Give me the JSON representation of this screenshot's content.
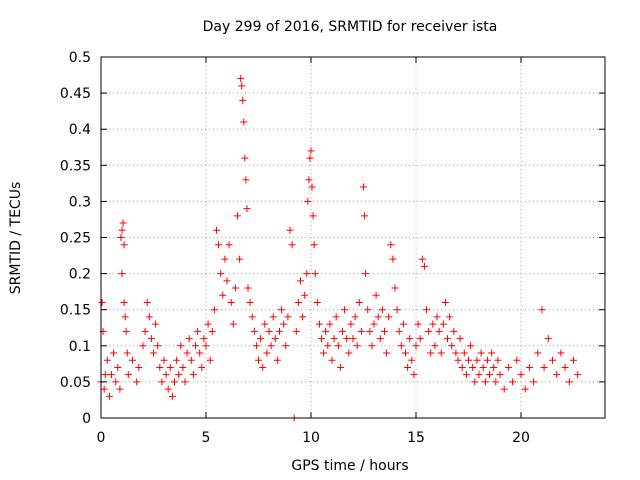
{
  "chart_data": {
    "type": "scatter",
    "title": "Day 299 of 2016, SRMTID for receiver ista",
    "xlabel": "GPS time / hours",
    "ylabel": "SRMTID / TECUs",
    "xlim": [
      0,
      24
    ],
    "ylim": [
      0,
      0.5
    ],
    "grid": true,
    "marker": "+",
    "series_color": "#ff0000",
    "x_ticks": [
      0,
      5,
      10,
      15,
      20
    ],
    "x_tick_labels": [
      "0",
      "5",
      "10",
      "15",
      "20"
    ],
    "y_ticks": [
      0,
      0.05,
      0.1,
      0.15,
      0.2,
      0.25,
      0.3,
      0.35,
      0.4,
      0.45,
      0.5
    ],
    "y_tick_labels": [
      "0",
      "0.05",
      "0.1",
      "0.15",
      "0.2",
      "0.25",
      "0.3",
      "0.35",
      "0.4",
      "0.45",
      "0.5"
    ],
    "series": [
      {
        "name": "SRMTID",
        "points": [
          [
            0.0,
            0.05
          ],
          [
            0.05,
            0.16
          ],
          [
            0.1,
            0.12
          ],
          [
            0.15,
            0.04
          ],
          [
            0.2,
            0.06
          ],
          [
            0.3,
            0.08
          ],
          [
            0.4,
            0.03
          ],
          [
            0.5,
            0.06
          ],
          [
            0.6,
            0.09
          ],
          [
            0.7,
            0.05
          ],
          [
            0.8,
            0.07
          ],
          [
            0.9,
            0.04
          ],
          [
            0.95,
            0.25
          ],
          [
            1.0,
            0.26
          ],
          [
            1.05,
            0.27
          ],
          [
            1.1,
            0.24
          ],
          [
            1.0,
            0.2
          ],
          [
            1.1,
            0.16
          ],
          [
            1.15,
            0.14
          ],
          [
            1.2,
            0.12
          ],
          [
            1.25,
            0.09
          ],
          [
            1.3,
            0.06
          ],
          [
            1.5,
            0.08
          ],
          [
            1.7,
            0.05
          ],
          [
            1.8,
            0.07
          ],
          [
            2.0,
            0.1
          ],
          [
            2.1,
            0.12
          ],
          [
            2.2,
            0.16
          ],
          [
            2.3,
            0.14
          ],
          [
            2.4,
            0.11
          ],
          [
            2.5,
            0.09
          ],
          [
            2.6,
            0.13
          ],
          [
            2.7,
            0.1
          ],
          [
            2.8,
            0.07
          ],
          [
            2.9,
            0.05
          ],
          [
            3.0,
            0.08
          ],
          [
            3.1,
            0.06
          ],
          [
            3.2,
            0.04
          ],
          [
            3.3,
            0.07
          ],
          [
            3.4,
            0.03
          ],
          [
            3.5,
            0.05
          ],
          [
            3.6,
            0.08
          ],
          [
            3.7,
            0.06
          ],
          [
            3.8,
            0.1
          ],
          [
            3.9,
            0.07
          ],
          [
            4.0,
            0.05
          ],
          [
            4.1,
            0.09
          ],
          [
            4.2,
            0.11
          ],
          [
            4.3,
            0.08
          ],
          [
            4.4,
            0.06
          ],
          [
            4.5,
            0.1
          ],
          [
            4.6,
            0.12
          ],
          [
            4.7,
            0.09
          ],
          [
            4.8,
            0.07
          ],
          [
            4.9,
            0.11
          ],
          [
            5.0,
            0.1
          ],
          [
            5.1,
            0.13
          ],
          [
            5.2,
            0.08
          ],
          [
            5.3,
            0.12
          ],
          [
            5.4,
            0.15
          ],
          [
            5.5,
            0.26
          ],
          [
            5.6,
            0.24
          ],
          [
            5.7,
            0.2
          ],
          [
            5.8,
            0.17
          ],
          [
            5.9,
            0.22
          ],
          [
            6.0,
            0.19
          ],
          [
            6.1,
            0.24
          ],
          [
            6.2,
            0.16
          ],
          [
            6.3,
            0.13
          ],
          [
            6.4,
            0.18
          ],
          [
            6.5,
            0.28
          ],
          [
            6.6,
            0.22
          ],
          [
            6.65,
            0.47
          ],
          [
            6.7,
            0.46
          ],
          [
            6.75,
            0.44
          ],
          [
            6.8,
            0.41
          ],
          [
            6.85,
            0.36
          ],
          [
            6.9,
            0.33
          ],
          [
            6.95,
            0.29
          ],
          [
            7.0,
            0.18
          ],
          [
            7.1,
            0.16
          ],
          [
            7.2,
            0.14
          ],
          [
            7.3,
            0.12
          ],
          [
            7.4,
            0.1
          ],
          [
            7.5,
            0.08
          ],
          [
            7.6,
            0.11
          ],
          [
            7.7,
            0.07
          ],
          [
            7.8,
            0.13
          ],
          [
            7.9,
            0.09
          ],
          [
            8.0,
            0.12
          ],
          [
            8.1,
            0.1
          ],
          [
            8.2,
            0.14
          ],
          [
            8.3,
            0.11
          ],
          [
            8.4,
            0.08
          ],
          [
            8.5,
            0.12
          ],
          [
            8.6,
            0.15
          ],
          [
            8.7,
            0.13
          ],
          [
            8.8,
            0.1
          ],
          [
            8.9,
            0.14
          ],
          [
            9.0,
            0.26
          ],
          [
            9.1,
            0.24
          ],
          [
            9.2,
            0.0
          ],
          [
            9.3,
            0.12
          ],
          [
            9.4,
            0.16
          ],
          [
            9.5,
            0.19
          ],
          [
            9.6,
            0.14
          ],
          [
            9.7,
            0.17
          ],
          [
            9.8,
            0.2
          ],
          [
            9.85,
            0.3
          ],
          [
            9.9,
            0.33
          ],
          [
            9.95,
            0.36
          ],
          [
            10.0,
            0.37
          ],
          [
            10.05,
            0.32
          ],
          [
            10.1,
            0.28
          ],
          [
            10.15,
            0.24
          ],
          [
            10.2,
            0.2
          ],
          [
            10.3,
            0.16
          ],
          [
            10.4,
            0.13
          ],
          [
            10.5,
            0.11
          ],
          [
            10.6,
            0.09
          ],
          [
            10.7,
            0.12
          ],
          [
            10.8,
            0.1
          ],
          [
            10.9,
            0.13
          ],
          [
            11.0,
            0.08
          ],
          [
            11.1,
            0.11
          ],
          [
            11.2,
            0.14
          ],
          [
            11.3,
            0.1
          ],
          [
            11.4,
            0.07
          ],
          [
            11.5,
            0.12
          ],
          [
            11.6,
            0.15
          ],
          [
            11.7,
            0.11
          ],
          [
            11.8,
            0.09
          ],
          [
            11.9,
            0.13
          ],
          [
            12.0,
            0.11
          ],
          [
            12.1,
            0.14
          ],
          [
            12.2,
            0.1
          ],
          [
            12.3,
            0.16
          ],
          [
            12.4,
            0.12
          ],
          [
            12.5,
            0.32
          ],
          [
            12.55,
            0.28
          ],
          [
            12.6,
            0.2
          ],
          [
            12.7,
            0.15
          ],
          [
            12.8,
            0.12
          ],
          [
            12.9,
            0.1
          ],
          [
            13.0,
            0.13
          ],
          [
            13.1,
            0.17
          ],
          [
            13.2,
            0.14
          ],
          [
            13.3,
            0.11
          ],
          [
            13.4,
            0.15
          ],
          [
            13.5,
            0.12
          ],
          [
            13.6,
            0.09
          ],
          [
            13.7,
            0.14
          ],
          [
            13.8,
            0.24
          ],
          [
            13.9,
            0.22
          ],
          [
            14.0,
            0.18
          ],
          [
            14.1,
            0.15
          ],
          [
            14.2,
            0.12
          ],
          [
            14.3,
            0.1
          ],
          [
            14.4,
            0.13
          ],
          [
            14.5,
            0.09
          ],
          [
            14.6,
            0.07
          ],
          [
            14.7,
            0.11
          ],
          [
            14.8,
            0.08
          ],
          [
            14.9,
            0.06
          ],
          [
            15.0,
            0.1
          ],
          [
            15.1,
            0.13
          ],
          [
            15.2,
            0.11
          ],
          [
            15.3,
            0.22
          ],
          [
            15.4,
            0.21
          ],
          [
            15.5,
            0.15
          ],
          [
            15.6,
            0.12
          ],
          [
            15.7,
            0.09
          ],
          [
            15.8,
            0.13
          ],
          [
            15.9,
            0.1
          ],
          [
            16.0,
            0.14
          ],
          [
            16.1,
            0.12
          ],
          [
            16.2,
            0.09
          ],
          [
            16.3,
            0.13
          ],
          [
            16.4,
            0.16
          ],
          [
            16.5,
            0.11
          ],
          [
            16.6,
            0.14
          ],
          [
            16.7,
            0.1
          ],
          [
            16.8,
            0.12
          ],
          [
            16.9,
            0.09
          ],
          [
            17.0,
            0.08
          ],
          [
            17.1,
            0.11
          ],
          [
            17.2,
            0.07
          ],
          [
            17.3,
            0.09
          ],
          [
            17.4,
            0.06
          ],
          [
            17.5,
            0.08
          ],
          [
            17.6,
            0.1
          ],
          [
            17.7,
            0.07
          ],
          [
            17.8,
            0.05
          ],
          [
            17.9,
            0.08
          ],
          [
            18.0,
            0.06
          ],
          [
            18.1,
            0.09
          ],
          [
            18.2,
            0.07
          ],
          [
            18.3,
            0.05
          ],
          [
            18.4,
            0.08
          ],
          [
            18.5,
            0.06
          ],
          [
            18.6,
            0.09
          ],
          [
            18.7,
            0.07
          ],
          [
            18.8,
            0.05
          ],
          [
            18.9,
            0.08
          ],
          [
            19.0,
            0.06
          ],
          [
            19.2,
            0.04
          ],
          [
            19.4,
            0.07
          ],
          [
            19.6,
            0.05
          ],
          [
            19.8,
            0.08
          ],
          [
            20.0,
            0.06
          ],
          [
            20.2,
            0.04
          ],
          [
            20.4,
            0.07
          ],
          [
            20.6,
            0.05
          ],
          [
            20.8,
            0.09
          ],
          [
            21.0,
            0.15
          ],
          [
            21.1,
            0.07
          ],
          [
            21.3,
            0.11
          ],
          [
            21.5,
            0.08
          ],
          [
            21.7,
            0.06
          ],
          [
            21.9,
            0.09
          ],
          [
            22.1,
            0.07
          ],
          [
            22.3,
            0.05
          ],
          [
            22.5,
            0.08
          ],
          [
            22.7,
            0.06
          ]
        ]
      }
    ]
  }
}
